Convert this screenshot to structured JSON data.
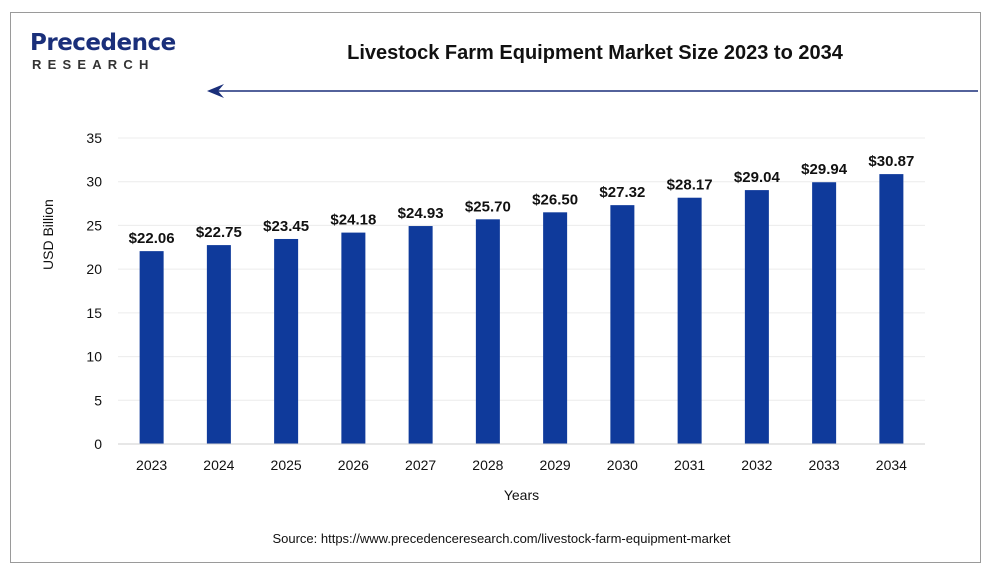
{
  "brand": {
    "name_first": "P",
    "name_rest": "recedence",
    "sub": "RESEARCH",
    "color": "#1a2f7a"
  },
  "footer": {
    "source": "Source: https://www.precedenceresearch.com/livestock-farm-equipment-market"
  },
  "chart_data": {
    "type": "bar",
    "title": "Livestock Farm Equipment Market Size 2023 to 2034",
    "xlabel": "Years",
    "ylabel": "USD Billion",
    "categories": [
      "2023",
      "2024",
      "2025",
      "2026",
      "2027",
      "2028",
      "2029",
      "2030",
      "2031",
      "2032",
      "2033",
      "2034"
    ],
    "values": [
      22.06,
      22.75,
      23.45,
      24.18,
      24.93,
      25.7,
      26.5,
      27.32,
      28.17,
      29.04,
      29.94,
      30.87
    ],
    "data_labels": [
      "$22.06",
      "$22.75",
      "$23.45",
      "$24.18",
      "$24.93",
      "$25.70",
      "$26.50",
      "$27.32",
      "$28.17",
      "$29.04",
      "$29.94",
      "$30.87"
    ],
    "ylim": [
      0,
      35
    ],
    "yticks": [
      "0",
      "5",
      "10",
      "15",
      "20",
      "25",
      "30",
      "35"
    ],
    "grid": true,
    "bar_color": "#0f3a9b"
  }
}
